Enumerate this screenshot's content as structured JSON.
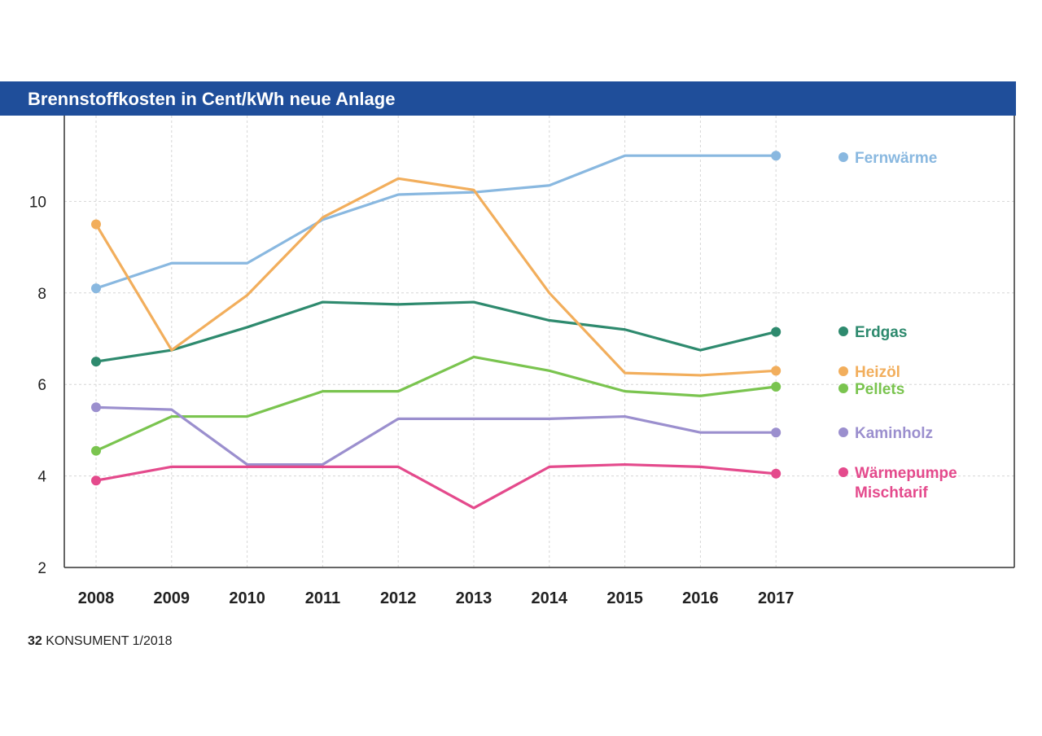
{
  "chart_data": {
    "type": "line",
    "title": "Brennstoffkosten in Cent/kWh neue Anlage",
    "x": [
      "2008",
      "2009",
      "2010",
      "2011",
      "2012",
      "2013",
      "2014",
      "2015",
      "2016",
      "2017"
    ],
    "yticks": [
      "2",
      "4",
      "6",
      "8",
      "10"
    ],
    "ylim": [
      2,
      11.8
    ],
    "grid": true,
    "legend_placement": "right",
    "series": [
      {
        "name": "Fernwärme",
        "color": "#89b8e0",
        "values": [
          8.1,
          8.65,
          8.65,
          9.6,
          10.15,
          10.2,
          10.35,
          11.0,
          11.0,
          11.0
        ]
      },
      {
        "name": "Erdgas",
        "color": "#2e8a6e",
        "values": [
          6.5,
          6.75,
          7.25,
          7.8,
          7.75,
          7.8,
          7.4,
          7.2,
          6.75,
          7.15
        ]
      },
      {
        "name": "Heizöl",
        "color": "#f2ae5c",
        "values": [
          9.5,
          6.75,
          7.95,
          9.65,
          10.5,
          10.25,
          8.0,
          6.25,
          6.2,
          6.3
        ]
      },
      {
        "name": "Pellets",
        "color": "#7ac44f",
        "values": [
          4.55,
          5.3,
          5.3,
          5.85,
          5.85,
          6.6,
          6.3,
          5.85,
          5.75,
          5.95
        ]
      },
      {
        "name": "Kaminholz",
        "color": "#9b8fce",
        "values": [
          5.5,
          5.45,
          4.25,
          4.25,
          5.25,
          5.25,
          5.25,
          5.3,
          4.95,
          4.95
        ]
      },
      {
        "name": "Wärmepumpe Mischtarif",
        "label_lines": [
          "Wärmepumpe",
          "Mischtarif"
        ],
        "color": "#e44a8c",
        "values": [
          3.9,
          4.2,
          4.2,
          4.2,
          4.2,
          3.3,
          4.2,
          4.25,
          4.2,
          4.05
        ]
      }
    ]
  },
  "footer": {
    "page_number": "32",
    "publication": "KONSUMENT 1/2018"
  }
}
